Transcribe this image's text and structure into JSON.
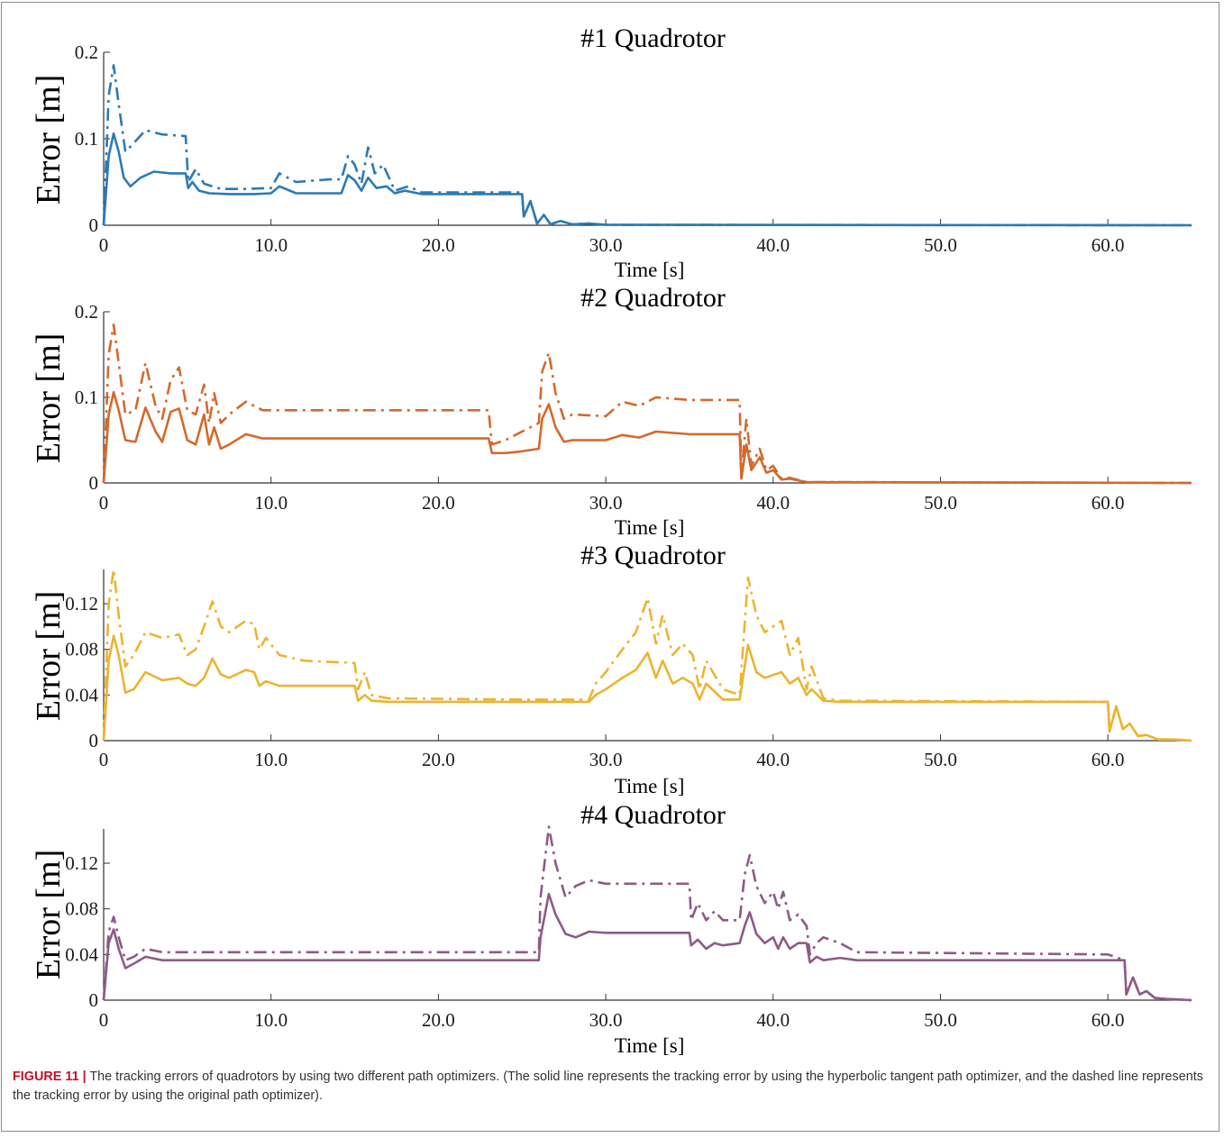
{
  "figure": {
    "caption_label": "FIGURE 11 |",
    "caption_text": " The tracking errors of quadrotors by using two different path optimizers. (The solid line represents the tracking error by using the hyperbolic tangent path optimizer, and the dashed line represents the tracking error by using the original path optimizer)."
  },
  "chart_data": [
    {
      "type": "line",
      "title": "#1 Quadrotor",
      "xlabel": "Time [s]",
      "ylabel": "Error [m]",
      "xlim": [
        0,
        65
      ],
      "ylim": [
        0,
        0.2
      ],
      "xticks": [
        0,
        10,
        20,
        30,
        40,
        50,
        60
      ],
      "xtick_labels": [
        "0",
        "10.0",
        "20.0",
        "30.0",
        "40.0",
        "50.0",
        "60.0"
      ],
      "yticks": [
        0,
        0.1,
        0.2
      ],
      "ytick_labels": [
        "0",
        "0.1",
        "0.2"
      ],
      "color": "#2b7ab5",
      "series": [
        {
          "style": "solid",
          "x": [
            0,
            0.3,
            0.6,
            0.9,
            1.2,
            1.6,
            2.2,
            3,
            4,
            4.9,
            5.05,
            5.3,
            5.7,
            6.3,
            7.5,
            9,
            10,
            10.5,
            11.5,
            13,
            14.2,
            14.6,
            15.0,
            15.4,
            15.8,
            16.3,
            16.9,
            17.4,
            18,
            19,
            25,
            25.1,
            25.5,
            25.9,
            26.3,
            26.7,
            27.3,
            28,
            29,
            30,
            65
          ],
          "y": [
            0,
            0.08,
            0.106,
            0.085,
            0.055,
            0.045,
            0.055,
            0.062,
            0.06,
            0.06,
            0.043,
            0.05,
            0.04,
            0.037,
            0.036,
            0.036,
            0.037,
            0.045,
            0.037,
            0.037,
            0.037,
            0.058,
            0.052,
            0.04,
            0.055,
            0.043,
            0.045,
            0.037,
            0.04,
            0.036,
            0.036,
            0.01,
            0.028,
            0.002,
            0.012,
            0.001,
            0.005,
            0.001,
            0.002,
            0.0005,
            0
          ]
        },
        {
          "style": "dash-dot",
          "x": [
            0,
            0.3,
            0.6,
            0.9,
            1.3,
            1.8,
            2.5,
            3.5,
            4.9,
            5.05,
            5.5,
            6,
            7,
            8.5,
            10,
            10.5,
            11.5,
            13.5,
            14.2,
            14.6,
            15.0,
            15.4,
            15.8,
            16.2,
            16.7,
            17.4,
            18.2,
            19,
            25,
            25.1,
            25.5,
            25.9,
            26.3,
            26.7,
            27.3,
            28,
            29,
            30,
            65
          ],
          "y": [
            0,
            0.15,
            0.185,
            0.14,
            0.085,
            0.095,
            0.11,
            0.105,
            0.103,
            0.05,
            0.065,
            0.048,
            0.042,
            0.042,
            0.043,
            0.06,
            0.05,
            0.053,
            0.053,
            0.08,
            0.07,
            0.048,
            0.09,
            0.06,
            0.07,
            0.04,
            0.045,
            0.038,
            0.038,
            0.01,
            0.028,
            0.002,
            0.012,
            0.001,
            0.005,
            0.001,
            0.002,
            0.0005,
            0
          ]
        }
      ]
    },
    {
      "type": "line",
      "title": "#2 Quadrotor",
      "xlabel": "Time [s]",
      "ylabel": "Error [m]",
      "xlim": [
        0,
        65
      ],
      "ylim": [
        0,
        0.2
      ],
      "xticks": [
        0,
        10,
        20,
        30,
        40,
        50,
        60
      ],
      "xtick_labels": [
        "0",
        "10.0",
        "20.0",
        "30.0",
        "40.0",
        "50.0",
        "60.0"
      ],
      "yticks": [
        0,
        0.1,
        0.2
      ],
      "ytick_labels": [
        "0",
        "0.1",
        "0.2"
      ],
      "color": "#d4692c",
      "series": [
        {
          "style": "solid",
          "x": [
            0,
            0.3,
            0.6,
            0.9,
            1.3,
            1.9,
            2.5,
            3.1,
            3.5,
            4.0,
            4.5,
            5.0,
            5.5,
            6.0,
            6.3,
            6.6,
            7.0,
            7.5,
            8.5,
            9.5,
            11,
            23,
            23.2,
            24,
            25,
            26,
            26.2,
            26.6,
            27,
            27.5,
            28,
            30,
            31,
            32,
            33,
            35,
            38,
            38.1,
            38.4,
            38.7,
            39.2,
            39.6,
            40,
            40.5,
            41,
            42,
            65
          ],
          "y": [
            0,
            0.08,
            0.106,
            0.085,
            0.05,
            0.048,
            0.088,
            0.06,
            0.048,
            0.083,
            0.087,
            0.05,
            0.045,
            0.08,
            0.045,
            0.065,
            0.04,
            0.045,
            0.057,
            0.052,
            0.052,
            0.052,
            0.035,
            0.035,
            0.037,
            0.04,
            0.075,
            0.092,
            0.065,
            0.048,
            0.05,
            0.05,
            0.056,
            0.053,
            0.06,
            0.057,
            0.057,
            0.005,
            0.045,
            0.015,
            0.03,
            0.012,
            0.015,
            0.004,
            0.005,
            0.001,
            0
          ]
        },
        {
          "style": "dash-dot",
          "x": [
            0,
            0.3,
            0.6,
            0.9,
            1.3,
            1.9,
            2.5,
            3.1,
            3.5,
            4.0,
            4.5,
            5.0,
            5.5,
            6.0,
            6.3,
            6.6,
            7.0,
            7.5,
            8.5,
            9.5,
            11,
            23,
            23.2,
            24,
            25,
            26,
            26.2,
            26.6,
            27,
            27.5,
            28,
            30,
            31,
            32,
            33,
            35,
            38,
            38.1,
            38.4,
            38.7,
            39.2,
            39.6,
            40,
            40.5,
            41,
            42,
            65
          ],
          "y": [
            0,
            0.15,
            0.185,
            0.14,
            0.08,
            0.085,
            0.14,
            0.09,
            0.075,
            0.12,
            0.135,
            0.085,
            0.08,
            0.115,
            0.07,
            0.105,
            0.07,
            0.08,
            0.095,
            0.085,
            0.085,
            0.085,
            0.045,
            0.05,
            0.06,
            0.07,
            0.13,
            0.152,
            0.105,
            0.075,
            0.08,
            0.078,
            0.095,
            0.09,
            0.1,
            0.097,
            0.097,
            0.01,
            0.075,
            0.02,
            0.04,
            0.015,
            0.02,
            0.005,
            0.006,
            0.001,
            0
          ]
        }
      ]
    },
    {
      "type": "line",
      "title": "#3 Quadrotor",
      "xlabel": "Time [s]",
      "ylabel": "Error [m]",
      "xlim": [
        0,
        65
      ],
      "ylim": [
        0,
        0.15
      ],
      "xticks": [
        0,
        10,
        20,
        30,
        40,
        50,
        60
      ],
      "xtick_labels": [
        "0",
        "10.0",
        "20.0",
        "30.0",
        "40.0",
        "50.0",
        "60.0"
      ],
      "yticks": [
        0,
        0.04,
        0.08,
        0.12
      ],
      "ytick_labels": [
        "0",
        "0.04",
        "0.08",
        "0.12"
      ],
      "color": "#ebb431",
      "series": [
        {
          "style": "solid",
          "x": [
            0,
            0.3,
            0.6,
            0.9,
            1.3,
            1.8,
            2.5,
            3.5,
            4.5,
            5.0,
            5.5,
            6,
            6.5,
            7,
            7.5,
            8.5,
            9,
            9.3,
            9.7,
            10.5,
            12,
            15,
            15.2,
            15.6,
            16,
            17,
            25,
            29,
            29.4,
            30,
            31,
            31.8,
            32.5,
            33,
            33.4,
            34,
            34.6,
            35.2,
            35.6,
            36,
            37,
            38,
            38.5,
            39,
            39.5,
            40.5,
            41,
            41.5,
            42,
            42.3,
            43,
            44,
            60,
            60.1,
            60.5,
            60.9,
            61.3,
            61.8,
            62.3,
            63,
            64,
            65
          ],
          "y": [
            0,
            0.07,
            0.092,
            0.075,
            0.042,
            0.045,
            0.06,
            0.053,
            0.055,
            0.05,
            0.048,
            0.055,
            0.072,
            0.058,
            0.055,
            0.062,
            0.06,
            0.048,
            0.052,
            0.048,
            0.048,
            0.048,
            0.035,
            0.04,
            0.035,
            0.034,
            0.034,
            0.034,
            0.04,
            0.045,
            0.055,
            0.062,
            0.077,
            0.055,
            0.07,
            0.05,
            0.055,
            0.05,
            0.036,
            0.05,
            0.036,
            0.036,
            0.084,
            0.06,
            0.055,
            0.06,
            0.05,
            0.055,
            0.04,
            0.045,
            0.035,
            0.034,
            0.034,
            0.008,
            0.03,
            0.01,
            0.015,
            0.004,
            0.005,
            0.001,
            0.001,
            0
          ]
        },
        {
          "style": "dash-dot",
          "x": [
            0,
            0.3,
            0.6,
            0.9,
            1.3,
            1.8,
            2.5,
            3.5,
            4.5,
            5.0,
            5.5,
            6,
            6.5,
            7,
            7.5,
            8.5,
            9,
            9.3,
            9.7,
            10.5,
            12,
            15,
            15.2,
            15.6,
            16,
            17,
            25,
            29,
            29.4,
            30,
            31,
            31.8,
            32.5,
            33,
            33.4,
            34,
            34.6,
            35.2,
            35.6,
            36,
            37,
            38,
            38.5,
            39,
            39.5,
            40.5,
            41,
            41.5,
            42,
            42.3,
            43,
            44,
            60,
            60.1,
            60.5,
            60.9,
            61.3,
            61.8,
            62.3,
            63,
            64,
            65
          ],
          "y": [
            0,
            0.12,
            0.15,
            0.11,
            0.065,
            0.075,
            0.095,
            0.09,
            0.093,
            0.075,
            0.08,
            0.1,
            0.122,
            0.1,
            0.095,
            0.105,
            0.102,
            0.08,
            0.09,
            0.075,
            0.07,
            0.068,
            0.045,
            0.06,
            0.04,
            0.037,
            0.036,
            0.036,
            0.05,
            0.06,
            0.08,
            0.095,
            0.125,
            0.085,
            0.11,
            0.075,
            0.085,
            0.075,
            0.045,
            0.07,
            0.045,
            0.04,
            0.143,
            0.11,
            0.095,
            0.105,
            0.075,
            0.09,
            0.045,
            0.065,
            0.037,
            0.035,
            0.034,
            0.008,
            0.03,
            0.01,
            0.015,
            0.004,
            0.005,
            0.001,
            0.001,
            0
          ]
        }
      ]
    },
    {
      "type": "line",
      "title": "#4 Quadrotor",
      "xlabel": "Time [s]",
      "ylabel": "Error [m]",
      "xlim": [
        0,
        65
      ],
      "ylim": [
        0,
        0.15
      ],
      "xticks": [
        0,
        10,
        20,
        30,
        40,
        50,
        60
      ],
      "xtick_labels": [
        "0",
        "10.0",
        "20.0",
        "30.0",
        "40.0",
        "50.0",
        "60.0"
      ],
      "yticks": [
        0,
        0.04,
        0.08,
        0.12
      ],
      "ytick_labels": [
        "0",
        "0.04",
        "0.08",
        "0.12"
      ],
      "color": "#8e5a86",
      "series": [
        {
          "style": "solid",
          "x": [
            0,
            0.3,
            0.6,
            0.9,
            1.3,
            1.8,
            2.5,
            3.5,
            5,
            10,
            26,
            26.1,
            26.6,
            27,
            27.6,
            28.2,
            29,
            30,
            35,
            35.1,
            35.5,
            36,
            36.5,
            37,
            38,
            38.3,
            38.6,
            39,
            39.5,
            40,
            40.3,
            40.6,
            41,
            41.5,
            42,
            42.2,
            42.6,
            43,
            44,
            45,
            60,
            61,
            61.1,
            61.5,
            61.9,
            62.3,
            62.8,
            63.5,
            65
          ],
          "y": [
            0,
            0.05,
            0.062,
            0.045,
            0.028,
            0.032,
            0.038,
            0.035,
            0.035,
            0.035,
            0.035,
            0.055,
            0.093,
            0.075,
            0.058,
            0.055,
            0.06,
            0.059,
            0.059,
            0.048,
            0.053,
            0.045,
            0.05,
            0.048,
            0.05,
            0.065,
            0.077,
            0.058,
            0.05,
            0.055,
            0.045,
            0.055,
            0.045,
            0.05,
            0.05,
            0.033,
            0.038,
            0.035,
            0.037,
            0.035,
            0.035,
            0.035,
            0.005,
            0.02,
            0.005,
            0.008,
            0.002,
            0.001,
            0
          ]
        },
        {
          "style": "dash-dot",
          "x": [
            0,
            0.3,
            0.6,
            0.9,
            1.3,
            1.8,
            2.5,
            3.5,
            5,
            10,
            26,
            26.1,
            26.6,
            27,
            27.6,
            28.2,
            29,
            30,
            35,
            35.1,
            35.5,
            36,
            36.5,
            37,
            38,
            38.3,
            38.6,
            39,
            39.5,
            40,
            40.3,
            40.6,
            41,
            41.5,
            42,
            42.2,
            42.6,
            43,
            44,
            45,
            60,
            61,
            61.1,
            61.5,
            61.9,
            62.3,
            62.8,
            63.5,
            65
          ],
          "y": [
            0,
            0.06,
            0.073,
            0.055,
            0.035,
            0.038,
            0.045,
            0.042,
            0.042,
            0.042,
            0.042,
            0.09,
            0.152,
            0.12,
            0.09,
            0.1,
            0.105,
            0.102,
            0.102,
            0.07,
            0.085,
            0.07,
            0.078,
            0.07,
            0.07,
            0.11,
            0.127,
            0.1,
            0.085,
            0.095,
            0.08,
            0.095,
            0.07,
            0.075,
            0.065,
            0.04,
            0.05,
            0.055,
            0.05,
            0.042,
            0.04,
            0.035,
            0.005,
            0.02,
            0.005,
            0.008,
            0.002,
            0.001,
            0
          ]
        }
      ]
    }
  ]
}
